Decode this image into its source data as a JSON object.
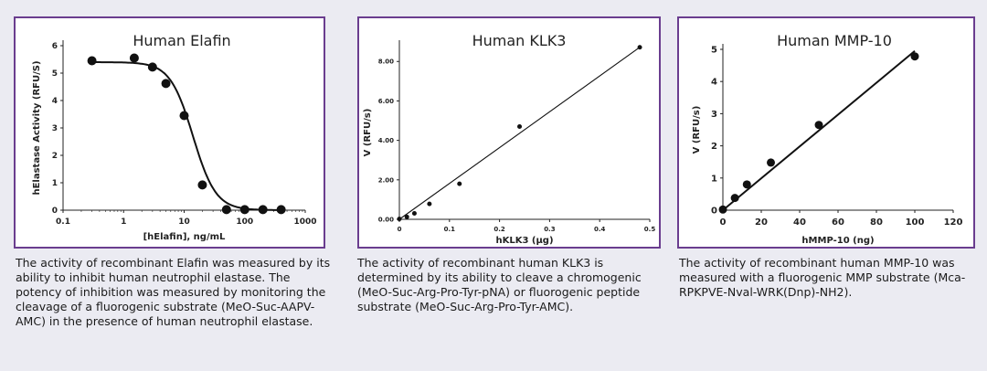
{
  "chart_data": [
    {
      "type": "scatter",
      "title": "Human Elafin",
      "xlabel": "[hElafin], ng/mL",
      "ylabel": "hElastase Activity (RFU/S)",
      "xscale": "log",
      "xlim": [
        0.1,
        1000
      ],
      "ylim": [
        0,
        6
      ],
      "xticks": [
        "0.1",
        "1",
        "10",
        "100",
        "1000"
      ],
      "yticks": [
        "0",
        "1",
        "2",
        "3",
        "4",
        "5",
        "6"
      ],
      "points": {
        "x": [
          0.3,
          1.5,
          3,
          5,
          10,
          20,
          50,
          100,
          200,
          400
        ],
        "y": [
          5.45,
          5.55,
          5.22,
          4.62,
          3.45,
          0.92,
          0.02,
          0.02,
          0.02,
          0.02
        ]
      },
      "fit": {
        "kind": "sigmoid",
        "top": 5.4,
        "bottom": 0,
        "ec50": 14,
        "hill": 2.3
      },
      "caption": "The activity of recombinant Elafin was measured by its ability to inhibit human neutrophil elastase. The potency of inhibition was measured by monitoring the cleavage of a fluorogenic substrate (MeO-Suc-AAPV-AMC) in the presence of human neutrophil elastase."
    },
    {
      "type": "scatter",
      "title": "Human KLK3",
      "xlabel": "hKLK3 (µg)",
      "ylabel": "V (RFU/s)",
      "xlim": [
        0,
        0.5
      ],
      "ylim": [
        0,
        8.8
      ],
      "xticks": [
        "0",
        "0.1",
        "0.2",
        "0.3",
        "0.4",
        "0.5"
      ],
      "yticks": [
        "0.00",
        "2.00",
        "4.00",
        "6.00",
        "8.00"
      ],
      "points": {
        "x": [
          0,
          0.015,
          0.03,
          0.06,
          0.12,
          0.24,
          0.48
        ],
        "y": [
          0.02,
          0.12,
          0.3,
          0.78,
          1.8,
          4.7,
          8.72
        ]
      },
      "fit": {
        "kind": "linear",
        "x": [
          0,
          0.48
        ],
        "y": [
          0,
          8.72
        ]
      },
      "caption": "The activity of recombinant human KLK3 is determined by its ability to cleave a chromogenic (MeO-Suc-Arg-Pro-Tyr-pNA) or fluorogenic peptide substrate (MeO-Suc-Arg-Pro-Tyr-AMC)."
    },
    {
      "type": "scatter",
      "title": "Human MMP-10",
      "xlabel": "hMMP-10 (ng)",
      "ylabel": "V (RFU/s)",
      "xlim": [
        0,
        120
      ],
      "ylim": [
        0,
        5
      ],
      "xticks": [
        "0",
        "20",
        "40",
        "60",
        "80",
        "100",
        "120"
      ],
      "yticks": [
        "0",
        "1",
        "2",
        "3",
        "4",
        "5"
      ],
      "points": {
        "x": [
          0,
          6.25,
          12.5,
          25,
          50,
          100
        ],
        "y": [
          0.02,
          0.38,
          0.8,
          1.48,
          2.65,
          4.78
        ]
      },
      "fit": {
        "kind": "linear",
        "x": [
          0,
          100
        ],
        "y": [
          0,
          4.95
        ]
      },
      "caption": "The activity of recombinant human MMP-10 was measured with a fluorogenic MMP substrate (Mca-RPKPVE-Nval-WRK(Dnp)-NH2)."
    }
  ]
}
